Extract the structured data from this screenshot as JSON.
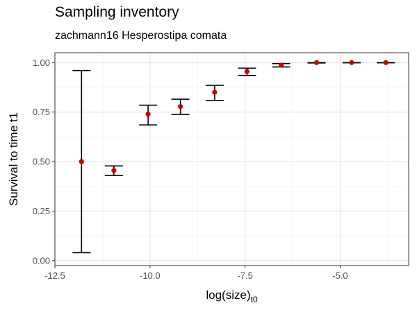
{
  "chart_data": {
    "type": "scatter",
    "title": "Sampling inventory",
    "subtitle": "zachmann16 Hesperostipa comata",
    "xlabel": "log(size)",
    "xlabel_subscript": "t0",
    "ylabel": "Survival to time t1",
    "xlim": [
      -12.5,
      -3.2
    ],
    "ylim": [
      -0.025,
      1.05
    ],
    "x_ticks": [
      -12.5,
      -10.0,
      -7.5,
      -5.0
    ],
    "x_tick_labels": [
      "-12.5",
      "-10.0",
      "-7.5",
      "-5.0"
    ],
    "y_ticks": [
      0.0,
      0.25,
      0.5,
      0.75,
      1.0
    ],
    "y_tick_labels": [
      "0.00",
      "0.25",
      "0.50",
      "0.75",
      "1.00"
    ],
    "grid": true,
    "point_color": "#cc0000",
    "points": [
      {
        "x": -11.8,
        "y": 0.5,
        "lower": 0.04,
        "upper": 0.96
      },
      {
        "x": -10.95,
        "y": 0.455,
        "lower": 0.43,
        "upper": 0.478
      },
      {
        "x": -10.05,
        "y": 0.74,
        "lower": 0.685,
        "upper": 0.785
      },
      {
        "x": -9.2,
        "y": 0.778,
        "lower": 0.738,
        "upper": 0.815
      },
      {
        "x": -8.3,
        "y": 0.85,
        "lower": 0.808,
        "upper": 0.885
      },
      {
        "x": -7.45,
        "y": 0.955,
        "lower": 0.935,
        "upper": 0.972
      },
      {
        "x": -6.55,
        "y": 0.987,
        "lower": 0.978,
        "upper": 0.995
      },
      {
        "x": -5.62,
        "y": 1.0,
        "lower": 0.998,
        "upper": 1.0
      },
      {
        "x": -4.7,
        "y": 1.0,
        "lower": 0.999,
        "upper": 1.0
      },
      {
        "x": -3.8,
        "y": 1.0,
        "lower": 0.999,
        "upper": 1.0
      }
    ]
  }
}
